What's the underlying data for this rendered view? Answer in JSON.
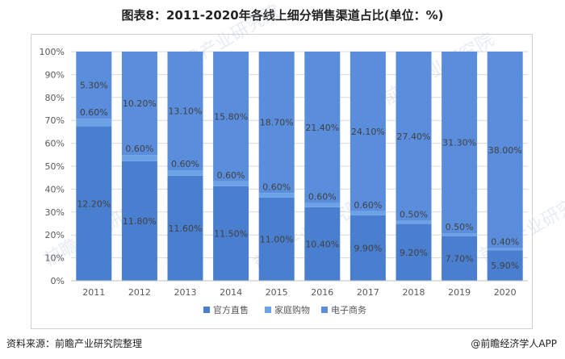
{
  "title": "图表8：2011-2020年各线上细分销售渠道占比(单位：%)",
  "footer": {
    "source": "资料来源：前瞻产业研究院整理",
    "brand": "@前瞻经济学人APP"
  },
  "watermark": "前瞻产业研究院",
  "colors": {
    "series": [
      "#4a7fd0",
      "#6ca2e6",
      "#5a8edc"
    ],
    "grid": "#d9d9d9",
    "axis_text": "#595959",
    "label_text": "#404040"
  },
  "chart_data": {
    "type": "bar",
    "stacked": true,
    "percent": true,
    "categories": [
      "2011",
      "2012",
      "2013",
      "2014",
      "2015",
      "2016",
      "2017",
      "2018",
      "2019",
      "2020"
    ],
    "series": [
      {
        "name": "官方直售",
        "values": [
          12.2,
          11.8,
          11.6,
          11.5,
          11.0,
          10.4,
          9.9,
          9.2,
          7.7,
          5.9
        ]
      },
      {
        "name": "家庭购物",
        "values": [
          0.6,
          0.6,
          0.6,
          0.6,
          0.6,
          0.6,
          0.6,
          0.5,
          0.5,
          0.4
        ]
      },
      {
        "name": "电子商务",
        "values": [
          5.3,
          10.2,
          13.1,
          15.8,
          18.7,
          21.4,
          24.1,
          27.4,
          31.3,
          38.0
        ]
      }
    ],
    "data_labels": [
      [
        "12.20%",
        "11.80%",
        "11.60%",
        "11.50%",
        "11.00%",
        "10.40%",
        "9.90%",
        "9.20%",
        "7.70%",
        "5.90%"
      ],
      [
        "0.60%",
        "0.60%",
        "0.60%",
        "0.60%",
        "0.60%",
        "0.60%",
        "0.60%",
        "0.50%",
        "0.50%",
        "0.40%"
      ],
      [
        "5.30%",
        "10.20%",
        "13.10%",
        "15.80%",
        "18.70%",
        "21.40%",
        "24.10%",
        "27.40%",
        "31.30%",
        "38.00%"
      ]
    ],
    "y_ticks": [
      "0%",
      "10%",
      "20%",
      "30%",
      "40%",
      "50%",
      "60%",
      "70%",
      "80%",
      "90%",
      "100%"
    ],
    "ylim": [
      0,
      100
    ],
    "legend_position": "bottom",
    "grid": true
  }
}
